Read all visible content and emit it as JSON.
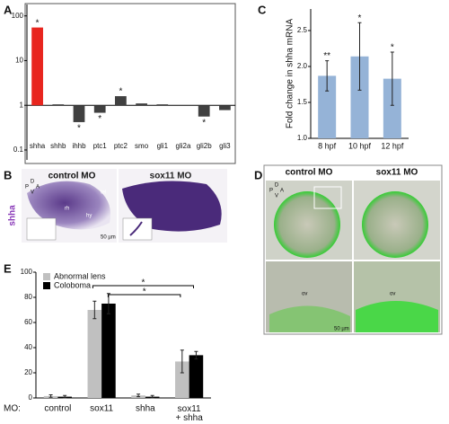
{
  "chart_data": [
    {
      "type": "bar",
      "label": "A",
      "log_scale": true,
      "color": "#404040",
      "highlight_color": "#e8251e",
      "categories": [
        "shha",
        "shhb",
        "ihhb",
        "ptc1",
        "ptc2",
        "smo",
        "gli1",
        "gli2a",
        "gli2b",
        "gli3"
      ],
      "values": [
        55,
        1.05,
        0.42,
        0.68,
        1.6,
        1.1,
        1.05,
        1.0,
        0.56,
        0.78
      ],
      "annotations": [
        "*",
        null,
        "*",
        "*",
        "*",
        null,
        null,
        null,
        "*",
        null
      ],
      "ylim": [
        0.06,
        180
      ],
      "yticks": [
        {
          "value": 0.1,
          "label": "0.1"
        },
        1,
        10,
        100
      ]
    },
    {
      "type": "bar",
      "label": "C",
      "color": "#95b3d7",
      "y_label": "Fold change in shha mRNA",
      "categories": [
        "8 hpf",
        "10 hpf",
        "12 hpf"
      ],
      "values": [
        1.87,
        2.14,
        1.83
      ],
      "errors": [
        0.21,
        0.47,
        0.37
      ],
      "annotations": [
        "**",
        "*",
        "*"
      ],
      "ylim": [
        1.0,
        2.8
      ],
      "yticks": [
        {
          "value": 1.0,
          "label": "1.0"
        },
        1.5,
        {
          "value": 2.0,
          "label": "2.0"
        },
        2.5
      ]
    },
    {
      "type": "bar",
      "label": "E",
      "axis_prefix": "MO:",
      "categories": [
        "control",
        "sox11",
        "shha",
        "sox11\n+ shha"
      ],
      "series": [
        {
          "name": "Abnormal lens",
          "color": "#c0c0c0",
          "values": [
            1.5,
            70,
            2,
            29
          ],
          "errors": [
            1,
            7,
            1,
            9
          ]
        },
        {
          "name": "Coloboma",
          "color": "#000000",
          "values": [
            1,
            75,
            1,
            34
          ],
          "errors": [
            1,
            8,
            1,
            3
          ]
        }
      ],
      "significance": [
        "*",
        "*"
      ],
      "ylim": [
        0,
        100
      ],
      "yticks": [
        0,
        20,
        40,
        60,
        80,
        100
      ]
    }
  ],
  "images": [
    {
      "label": "B",
      "titles": [
        "control MO",
        "sox11 MO"
      ],
      "stain": "shha",
      "orientation": [
        "D",
        "P",
        "A",
        "V"
      ],
      "annotations": [
        "tel",
        "rh",
        "hy"
      ],
      "scale_bar": "50 µm"
    },
    {
      "label": "D",
      "titles": [
        "control MO",
        "sox11 MO"
      ],
      "orientation": [
        "D",
        "P",
        "A",
        "V"
      ],
      "annotations": [
        "ov",
        "ov"
      ],
      "scale_bar": "50 µm"
    }
  ]
}
